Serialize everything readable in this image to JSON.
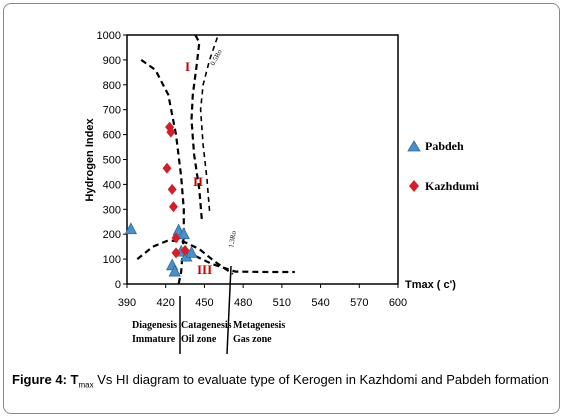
{
  "chart_data": {
    "type": "scatter",
    "title": "",
    "ylabel": "Hydrogen Index",
    "xlabel": "Tmax ( c')",
    "xlim": [
      390,
      600
    ],
    "ylim": [
      0,
      1000
    ],
    "x_ticks": [
      "390",
      "420",
      "450",
      "480",
      "510",
      "540",
      "570",
      "600"
    ],
    "y_ticks": [
      "0",
      "100",
      "200",
      "300",
      "400",
      "500",
      "600",
      "700",
      "800",
      "900",
      "1000"
    ],
    "legend_position": "right",
    "series": [
      {
        "name": "Pabdeh",
        "marker": "triangle",
        "color": "#4a90c8",
        "points": [
          [
            393,
            220
          ],
          [
            425,
            75
          ],
          [
            427,
            50
          ],
          [
            430,
            215
          ],
          [
            432,
            130
          ],
          [
            434,
            200
          ],
          [
            436,
            110
          ],
          [
            440,
            125
          ]
        ]
      },
      {
        "name": "Kazhdumi",
        "marker": "diamond",
        "color": "#d21f2b",
        "points": [
          [
            423,
            630
          ],
          [
            424,
            610
          ],
          [
            421,
            465
          ],
          [
            425,
            380
          ],
          [
            426,
            310
          ],
          [
            428,
            185
          ],
          [
            428,
            125
          ],
          [
            435,
            135
          ]
        ]
      }
    ],
    "region_labels": [
      "I",
      "II",
      "III"
    ],
    "curve_labels": [
      "0.5Ro",
      "1.3Ro"
    ],
    "zones": [
      {
        "line1": "Diagenesis",
        "line2": "Immature"
      },
      {
        "line1": "Catagenesis",
        "line2": "Oil zone"
      },
      {
        "line1": "Metagenesis",
        "line2": "Gas zone"
      }
    ]
  },
  "caption": {
    "label": "Figure 4:",
    "symbol": "T",
    "subscript": "max",
    "text": " Vs HI diagram to evaluate type of Kerogen in Kazhdomi and Pabdeh formation"
  }
}
